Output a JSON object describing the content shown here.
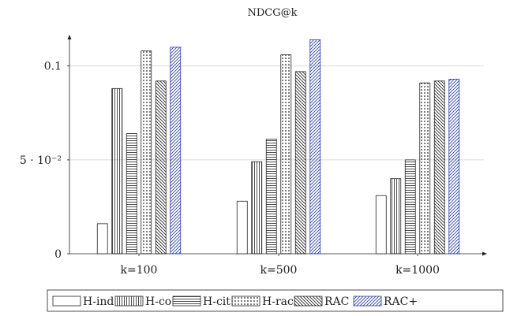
{
  "chart_data": {
    "type": "bar",
    "title": "NDCG@k",
    "xlabel": "",
    "ylabel": "",
    "categories": [
      "k=100",
      "k=500",
      "k=1000"
    ],
    "ylim": [
      0,
      0.115
    ],
    "yticks": [
      {
        "value": 0,
        "label": "0"
      },
      {
        "value": 0.05,
        "label": "5 · 10⁻²"
      },
      {
        "value": 0.1,
        "label": "0.1"
      }
    ],
    "grid": "horizontal",
    "legend_position": "bottom",
    "series": [
      {
        "name": "H-ind",
        "pattern": "none",
        "values": [
          0.016,
          0.028,
          0.031
        ]
      },
      {
        "name": "H-co",
        "pattern": "vertical-lines",
        "values": [
          0.088,
          0.049,
          0.04
        ]
      },
      {
        "name": "H-cit",
        "pattern": "horizontal-lines",
        "values": [
          0.064,
          0.061,
          0.05
        ]
      },
      {
        "name": "H-rac",
        "pattern": "dots",
        "values": [
          0.108,
          0.106,
          0.091
        ]
      },
      {
        "name": "RAC",
        "pattern": "north-west-lines",
        "values": [
          0.092,
          0.097,
          0.092
        ]
      },
      {
        "name": "RAC+",
        "pattern": "north-east-lines",
        "color": "#2a3fa0",
        "values": [
          0.11,
          0.114,
          0.093
        ]
      }
    ]
  }
}
